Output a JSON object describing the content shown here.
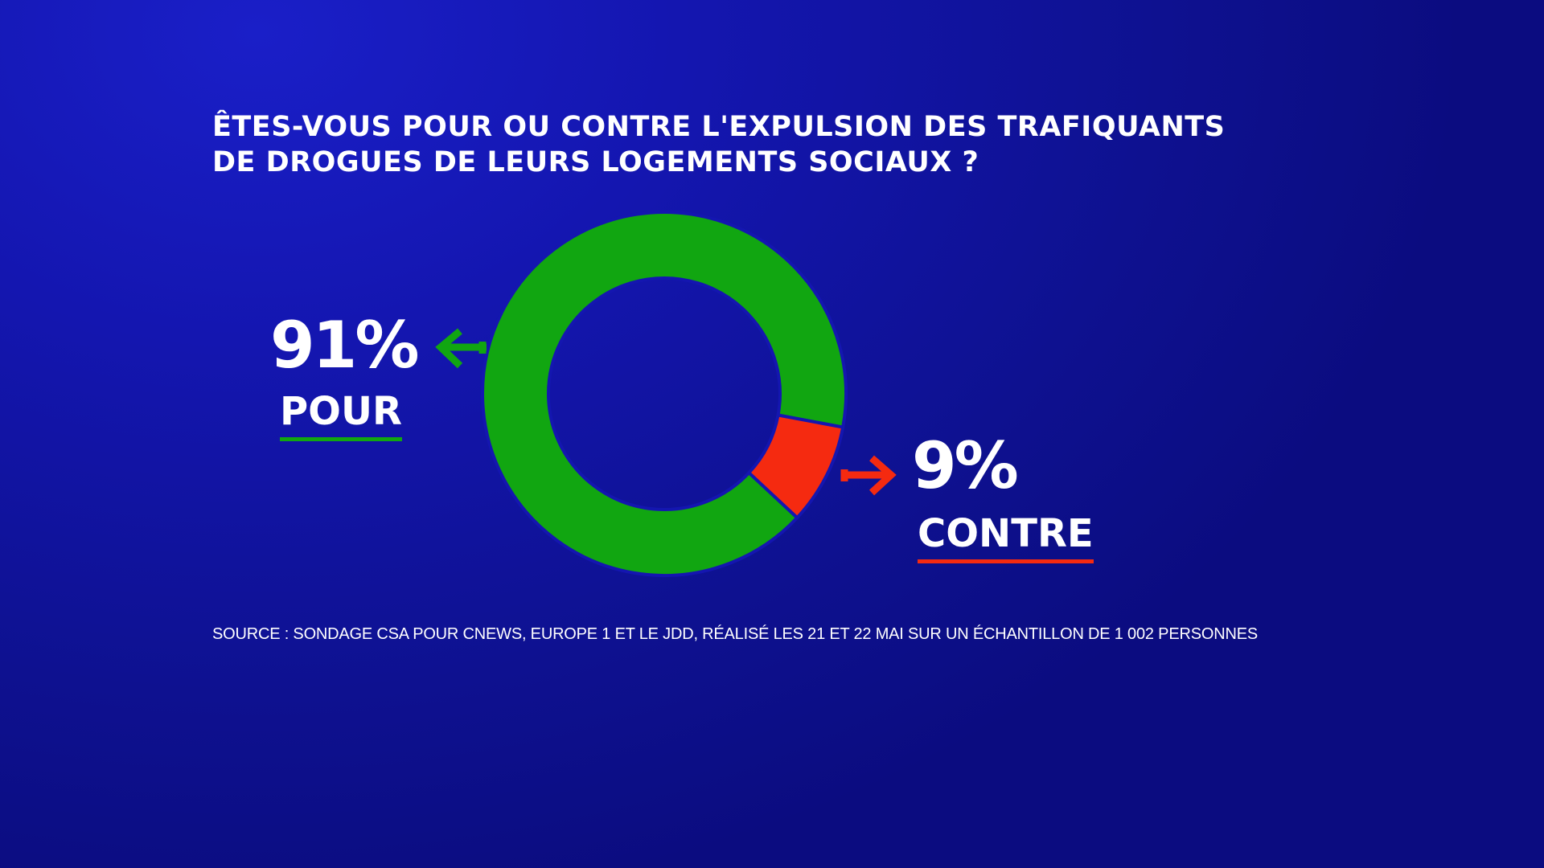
{
  "title_lines": [
    "ÊTES-VOUS POUR OU CONTRE L'EXPULSION DES TRAFIQUANTS",
    "DE DROGUES DE LEURS LOGEMENTS SOCIAUX ?"
  ],
  "source": "SOURCE : SONDAGE CSA POUR CNEWS, EUROPE 1 ET LE JDD, RÉALISÉ LES 21 ET 22 MAI SUR UN ÉCHANTILLON DE 1 002 PERSONNES",
  "colors": {
    "pour": "#11a611",
    "contre": "#f52a10",
    "background": "#1416b0"
  },
  "chart_data": {
    "type": "pie",
    "variant": "donut",
    "title": "ÊTES-VOUS POUR OU CONTRE L'EXPULSION DES TRAFIQUANTS DE DROGUES DE LEURS LOGEMENTS SOCIAUX ?",
    "categories": [
      "POUR",
      "CONTRE"
    ],
    "values": [
      91,
      9
    ],
    "value_labels": [
      "91%",
      "9%"
    ],
    "colors": [
      "#11a611",
      "#f52a10"
    ]
  }
}
